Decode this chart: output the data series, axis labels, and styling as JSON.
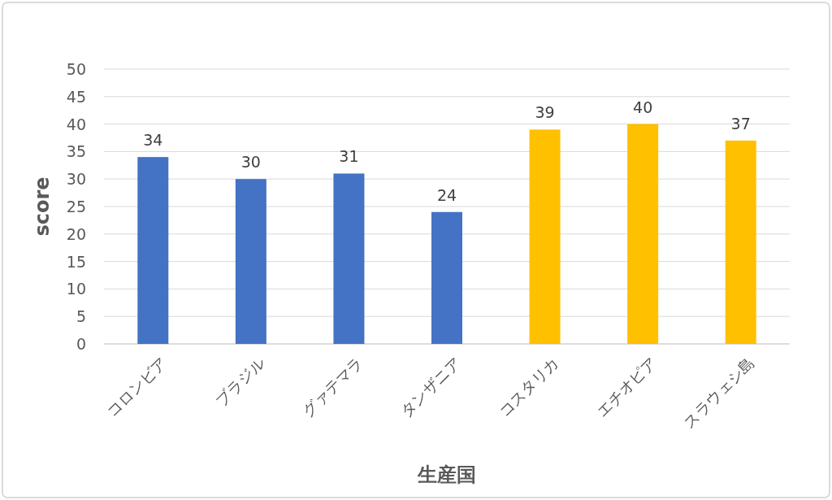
{
  "chart_data": {
    "type": "bar",
    "xlabel": "生産国",
    "ylabel": "score",
    "categories": [
      "コロンビア",
      "ブラジル",
      "グァテマラ",
      "タンザニア",
      "コスタリカ",
      "エチオピア",
      "スラウェシ島"
    ],
    "values": [
      34,
      30,
      31,
      24,
      39,
      40,
      37
    ],
    "colors": [
      "#4472c4",
      "#4472c4",
      "#4472c4",
      "#4472c4",
      "#ffc000",
      "#ffc000",
      "#ffc000"
    ],
    "ylim": [
      0,
      50
    ],
    "yticks": [
      0,
      5,
      10,
      15,
      20,
      25,
      30,
      35,
      40,
      45,
      50
    ],
    "grid": "y",
    "data_labels": true
  }
}
